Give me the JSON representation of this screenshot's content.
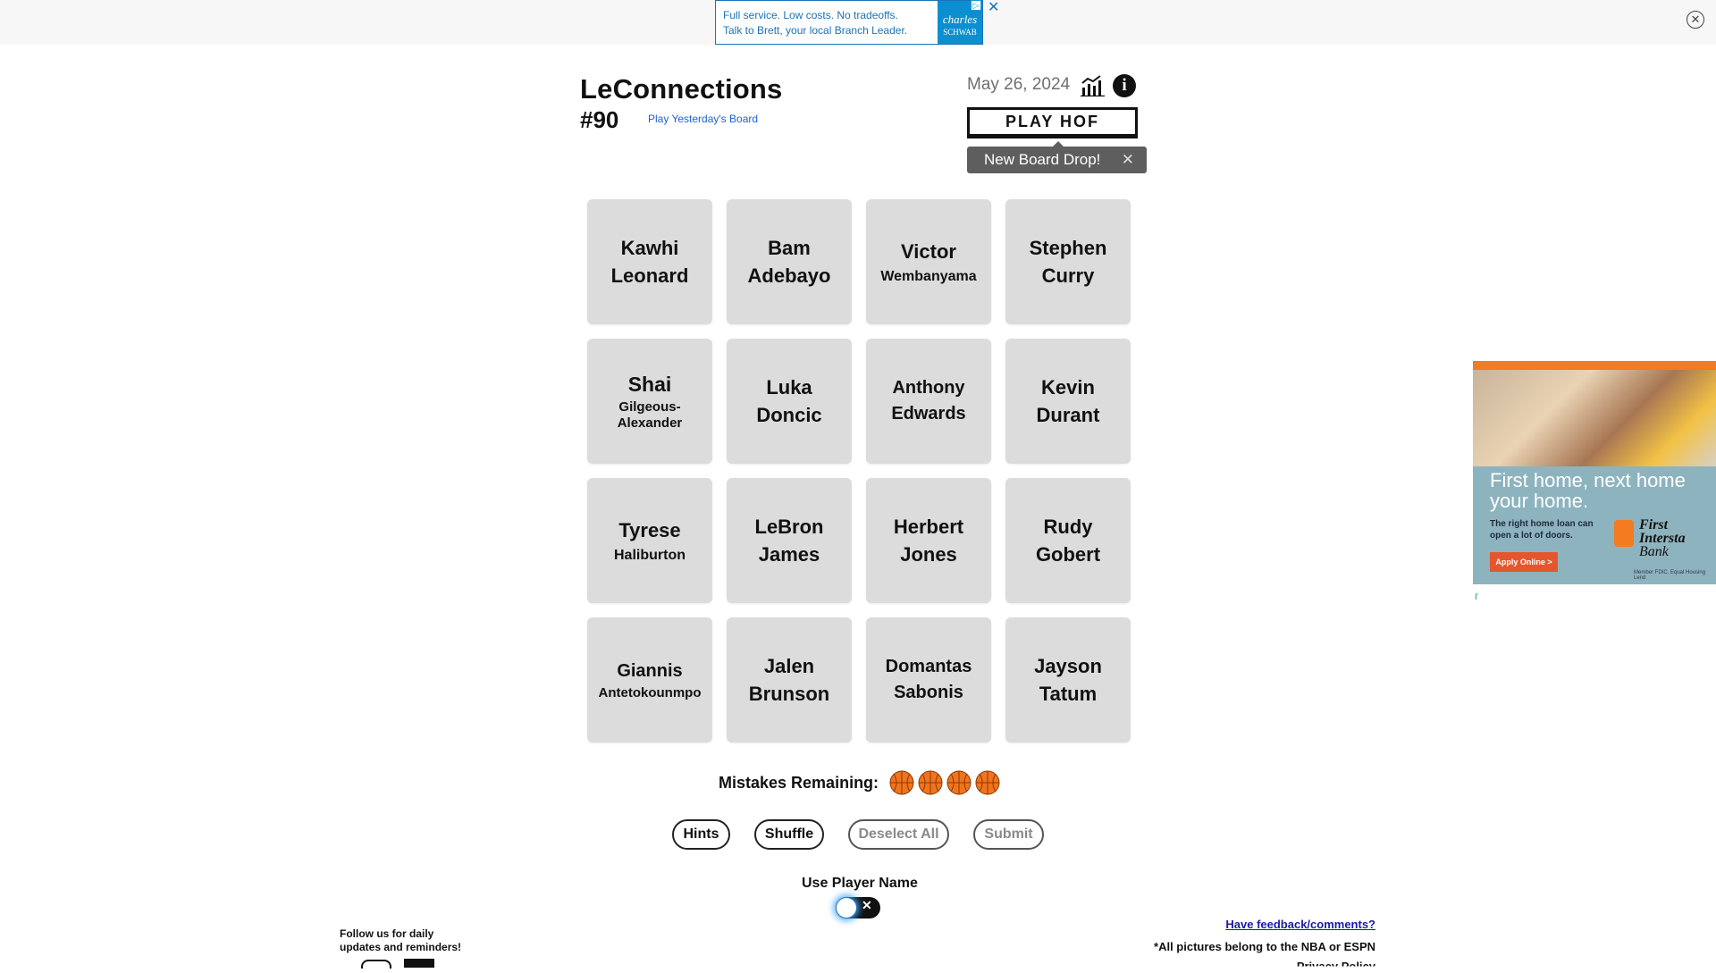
{
  "top_ad": {
    "line1": "Full service. Low costs. No tradeoffs.",
    "line2": "Talk to Brett, your local Branch Leader.",
    "brand": "charles",
    "brand_small": "SCHWAB",
    "choice_icon": "adchoices-icon",
    "close_symbol": "✕"
  },
  "page_close_symbol": "✕",
  "header": {
    "title": "LeConnections",
    "board_number": "#90",
    "yesterday_link": "Play Yesterday's Board",
    "date": "May 26, 2024",
    "stats_icon": "bar-chart-icon",
    "info_icon": "info-icon",
    "info_symbol": "i",
    "play_hof": "PLAY HOF",
    "toast": "New Board Drop!",
    "toast_close": "✕"
  },
  "tiles": [
    {
      "line1": "Kawhi",
      "line2": "Leonard"
    },
    {
      "line1": "Bam",
      "line2": "Adebayo"
    },
    {
      "line1": "Victor",
      "line2": "Wembanyama"
    },
    {
      "line1": "Stephen",
      "line2": "Curry"
    },
    {
      "line1": "Shai",
      "line2": "Gilgeous-Alexander"
    },
    {
      "line1": "Luka",
      "line2": "Doncic"
    },
    {
      "line1": "Anthony",
      "line2": "Edwards"
    },
    {
      "line1": "Kevin",
      "line2": "Durant"
    },
    {
      "line1": "Tyrese",
      "line2": "Haliburton"
    },
    {
      "line1": "LeBron",
      "line2": "James"
    },
    {
      "line1": "Herbert",
      "line2": "Jones"
    },
    {
      "line1": "Rudy",
      "line2": "Gobert"
    },
    {
      "line1": "Giannis",
      "line2": "Antetokounmpo"
    },
    {
      "line1": "Jalen",
      "line2": "Brunson"
    },
    {
      "line1": "Domantas",
      "line2": "Sabonis"
    },
    {
      "line1": "Jayson",
      "line2": "Tatum"
    }
  ],
  "mistakes": {
    "label": "Mistakes Remaining:",
    "remaining": 4,
    "icon": "basketball-icon",
    "colors": {
      "ball": "#f0741e",
      "seam": "#8a3a08"
    }
  },
  "controls": {
    "hints": "Hints",
    "shuffle": "Shuffle",
    "deselect_all": "Deselect All",
    "submit": "Submit"
  },
  "player_name_toggle": {
    "label": "Use Player Name",
    "enabled": false,
    "off_symbol": "✕"
  },
  "footer": {
    "follow_line1": "Follow us for daily",
    "follow_line2": "updates and reminders!",
    "feedback_link": "Have feedback/comments?",
    "credits": "*All pictures belong to the NBA or ESPN",
    "privacy": "Privacy Policy"
  },
  "side_ad": {
    "headline_line1": "First home, next home",
    "headline_line2": "your home.",
    "sub_line1": "The right home loan can",
    "sub_line2": "open a lot of doors.",
    "button": "Apply Online >",
    "bank_line1": "First",
    "bank_line2": "Intersta",
    "bank_line3": "Bank",
    "fine": "Member FDIC. Equal Housing Lend",
    "badge_icon": "freestar-icon"
  },
  "colors": {
    "tile_bg": "#dcdcdc",
    "toast_bg": "#5e5e5e",
    "link_blue": "#1f5fd6",
    "toggle_glow": "#3aa3ff",
    "ad_accent": "#f47b20"
  }
}
